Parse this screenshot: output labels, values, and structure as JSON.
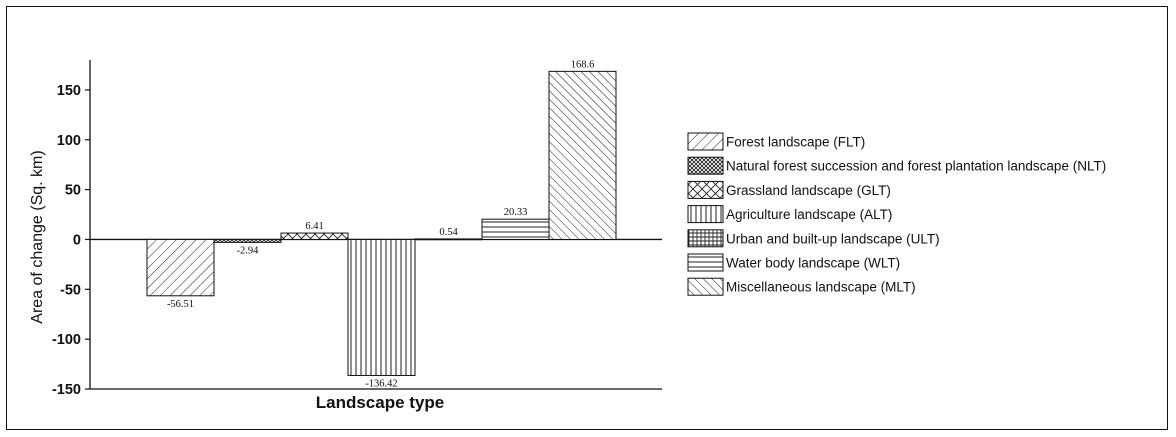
{
  "chart_data": {
    "type": "bar",
    "xlabel": "Landscape type",
    "ylabel": "Area of change (Sq. km)",
    "ylim": [
      -150,
      180
    ],
    "yticks": [
      -150,
      -100,
      -50,
      0,
      50,
      100,
      150
    ],
    "grid": false,
    "legend_position": "right",
    "categories": [
      "Forest landscape (FLT)",
      "Natural forest succession and forest plantation landscape (NLT)",
      "Grassland landscape (GLT)",
      "Agriculture landscape (ALT)",
      "Urban and built-up landscape (ULT)",
      "Water body landscape (WLT)",
      "Miscellaneous landscape (MLT)"
    ],
    "values": [
      -56.51,
      -2.94,
      6.41,
      -136.42,
      0.54,
      20.33,
      168.6
    ],
    "data_labels": [
      "-56.51",
      "-2.94",
      "6.41",
      "-136.42",
      "0.54",
      "20.33",
      "168.6"
    ],
    "patterns": [
      "diag-right",
      "crosshatch-dense",
      "crosshatch-diag",
      "vertical",
      "grid",
      "horizontal",
      "diag-left"
    ]
  }
}
